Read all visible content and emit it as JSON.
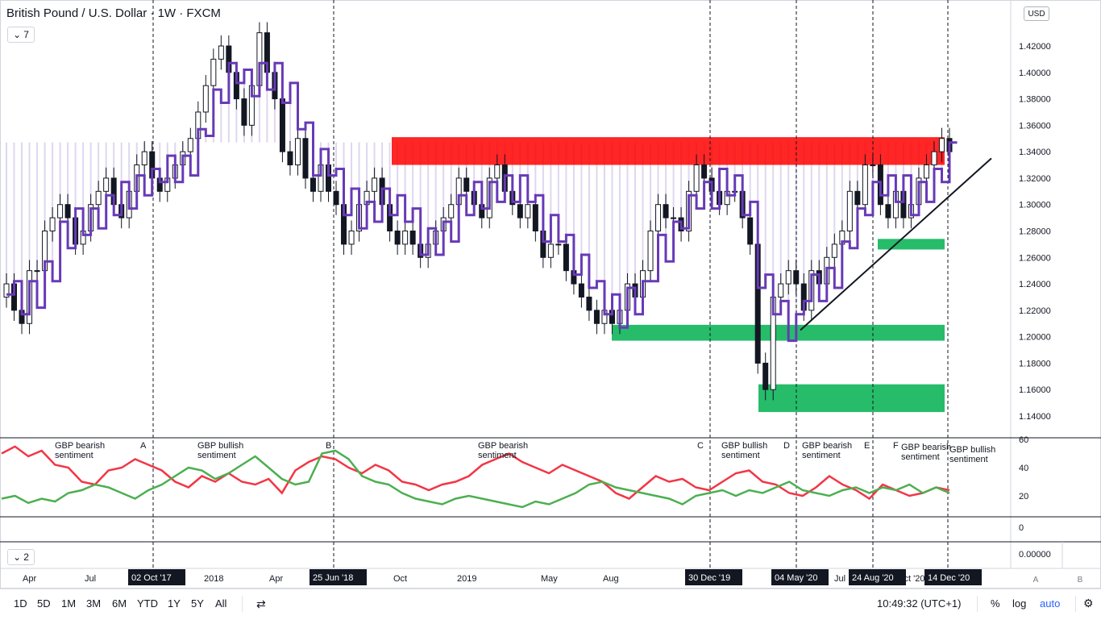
{
  "header": {
    "title": "British Pound / U.S. Dollar · 1W · FXCM",
    "indicator_count": "7",
    "pane2_count": "2",
    "currency": "USD"
  },
  "chart_data": {
    "type": "candlestick",
    "symbol": "GBPUSD",
    "interval": "1W",
    "ylim": [
      1.13,
      1.445
    ],
    "y_ticks": [
      "1.14000",
      "1.16000",
      "1.18000",
      "1.20000",
      "1.22000",
      "1.24000",
      "1.26000",
      "1.28000",
      "1.30000",
      "1.32000",
      "1.34000",
      "1.36000",
      "1.38000",
      "1.40000",
      "1.42000"
    ],
    "x_ticks": [
      "Apr",
      "Jul",
      "2018",
      "Apr",
      "Oct",
      "2019",
      "May",
      "Aug",
      "Jul",
      "Oct '20"
    ],
    "highlighted_dates": [
      "02 Oct '17",
      "25 Jun '18",
      "30 Dec '19",
      "04 May '20",
      "24 Aug '20",
      "14 Dec '20"
    ],
    "event_letters": [
      "A",
      "B",
      "C",
      "D",
      "E",
      "F"
    ],
    "zones": [
      {
        "name": "resistance",
        "color": "#ff0000",
        "y0": 1.33,
        "y1": 1.351
      },
      {
        "name": "support-1",
        "color": "#00b050",
        "y0": 1.266,
        "y1": 1.274
      },
      {
        "name": "support-2",
        "color": "#00b050",
        "y0": 1.197,
        "y1": 1.209
      },
      {
        "name": "support-3",
        "color": "#00b050",
        "y0": 1.143,
        "y1": 1.164
      }
    ],
    "trendline": {
      "x0": "04 May '20",
      "y0": 1.205,
      "x1": "Jan '21",
      "y1": 1.335
    },
    "candles_close": [
      1.24,
      1.22,
      1.21,
      1.25,
      1.25,
      1.28,
      1.29,
      1.3,
      1.29,
      1.27,
      1.28,
      1.3,
      1.31,
      1.32,
      1.3,
      1.29,
      1.31,
      1.33,
      1.34,
      1.32,
      1.31,
      1.32,
      1.33,
      1.34,
      1.35,
      1.37,
      1.39,
      1.41,
      1.42,
      1.4,
      1.38,
      1.36,
      1.39,
      1.43,
      1.4,
      1.38,
      1.34,
      1.33,
      1.35,
      1.32,
      1.31,
      1.33,
      1.31,
      1.3,
      1.27,
      1.28,
      1.3,
      1.31,
      1.32,
      1.3,
      1.28,
      1.27,
      1.28,
      1.27,
      1.26,
      1.27,
      1.28,
      1.29,
      1.3,
      1.32,
      1.31,
      1.3,
      1.29,
      1.32,
      1.33,
      1.31,
      1.3,
      1.29,
      1.3,
      1.28,
      1.26,
      1.27,
      1.27,
      1.25,
      1.24,
      1.23,
      1.22,
      1.21,
      1.22,
      1.21,
      1.22,
      1.24,
      1.23,
      1.25,
      1.28,
      1.3,
      1.29,
      1.29,
      1.28,
      1.31,
      1.33,
      1.32,
      1.31,
      1.3,
      1.31,
      1.31,
      1.29,
      1.27,
      1.18,
      1.16,
      1.23,
      1.24,
      1.25,
      1.24,
      1.22,
      1.25,
      1.24,
      1.26,
      1.27,
      1.28,
      1.31,
      1.3,
      1.33,
      1.33,
      1.3,
      1.29,
      1.31,
      1.29,
      1.3,
      1.32,
      1.33,
      1.34,
      1.35,
      1.34
    ],
    "price_line_name": "",
    "sentiment": {
      "labels": [
        "GBP bearish sentiment",
        "GBP bullish sentiment",
        "GBP bearish sentiment",
        "GBP bullish sentiment",
        "GBP bearish sentiment",
        "GBP bearish sentiment",
        "GBP bullish sentiment"
      ],
      "ylim": [
        5,
        65
      ],
      "y_ticks": [
        "60",
        "40",
        "20"
      ],
      "red_series": [
        50,
        55,
        48,
        52,
        42,
        40,
        30,
        28,
        38,
        40,
        46,
        42,
        38,
        30,
        26,
        34,
        30,
        36,
        30,
        28,
        32,
        22,
        38,
        44,
        48,
        46,
        40,
        36,
        42,
        38,
        30,
        28,
        24,
        28,
        30,
        34,
        42,
        46,
        50,
        44,
        40,
        36,
        42,
        38,
        34,
        30,
        22,
        18,
        26,
        34,
        30,
        32,
        26,
        24,
        30,
        36,
        38,
        30,
        28,
        22,
        20,
        26,
        34,
        28,
        24,
        18,
        28,
        24,
        20,
        22,
        26,
        24
      ],
      "green_series": [
        18,
        20,
        15,
        18,
        16,
        22,
        24,
        28,
        26,
        22,
        18,
        24,
        28,
        34,
        40,
        38,
        32,
        36,
        42,
        48,
        40,
        32,
        28,
        30,
        50,
        52,
        46,
        34,
        30,
        28,
        22,
        18,
        16,
        14,
        18,
        20,
        18,
        16,
        14,
        12,
        16,
        14,
        18,
        22,
        28,
        30,
        26,
        24,
        22,
        20,
        18,
        14,
        20,
        22,
        24,
        20,
        24,
        22,
        26,
        30,
        24,
        22,
        20,
        24,
        26,
        22,
        26,
        24,
        28,
        22,
        26,
        22
      ]
    },
    "pane3_y_ticks": [
      "0",
      "0.00000"
    ]
  },
  "toolbar": {
    "ranges": [
      "1D",
      "5D",
      "1M",
      "3M",
      "6M",
      "YTD",
      "1Y",
      "5Y",
      "All"
    ],
    "clock": "10:49:32 (UTC+1)",
    "percent": "%",
    "log": "log",
    "auto": "auto"
  },
  "scale_buttons": {
    "a": "A",
    "b": "B"
  },
  "colors": {
    "up": "#ffffff",
    "down": "#131722",
    "cloud": "#673ab7",
    "red_line": "#f23645",
    "green_line": "#4caf50"
  }
}
